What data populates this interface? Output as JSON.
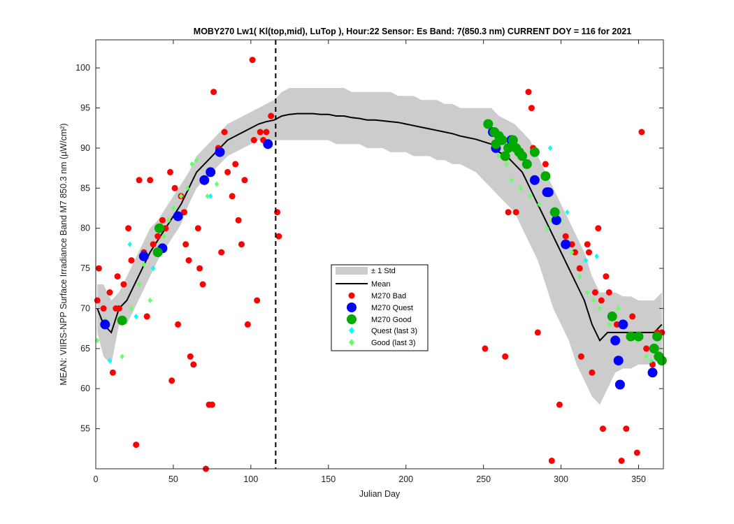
{
  "chart_data": {
    "type": "line",
    "title": "MOBY270   Lw1( Kl(top,mid), LuTop ),   Hour:22 Sensor: Es Band: 7(850.3 nm)   CURRENT DOY = 116 for 2021",
    "xlabel": "Julian Day",
    "ylabel": "MEAN: VIIRS-NPP Surface Irradiance Band M7 850.3 nm (µW/cm²)",
    "xlim": [
      0,
      366
    ],
    "ylim": [
      50,
      103.5
    ],
    "xticks": [
      "0",
      "50",
      "100",
      "150",
      "200",
      "250",
      "300",
      "350"
    ],
    "yticks": [
      "55",
      "60",
      "65",
      "70",
      "75",
      "80",
      "85",
      "90",
      "95",
      "100"
    ],
    "current_doy": 116,
    "legend_position": "center",
    "legend": {
      "std": "± 1 Std",
      "mean": "Mean",
      "bad": "M270 Bad",
      "quest": "M270 Quest",
      "good": "M270 Good",
      "quest_last3": "Quest (last 3)",
      "good_last3": "Good (last 3)"
    },
    "colors": {
      "std_band": "#cccccc",
      "mean": "#000000",
      "bad": "#ff0000",
      "quest": "#0000ff",
      "good": "#00aa00",
      "quest_last3": "#00ffff",
      "good_last3": "#66ff66",
      "current_doy_line": "#000000"
    },
    "mean": {
      "x": [
        1,
        5,
        10,
        15,
        20,
        25,
        30,
        35,
        40,
        45,
        50,
        55,
        60,
        65,
        70,
        75,
        80,
        85,
        90,
        95,
        100,
        105,
        110,
        115,
        120,
        125,
        130,
        135,
        140,
        145,
        150,
        155,
        160,
        165,
        170,
        175,
        180,
        185,
        190,
        195,
        200,
        205,
        210,
        215,
        220,
        225,
        230,
        235,
        240,
        245,
        250,
        255,
        260,
        265,
        270,
        275,
        280,
        285,
        290,
        295,
        300,
        305,
        310,
        315,
        320,
        325,
        330,
        335,
        340,
        345,
        350,
        355,
        360,
        365
      ],
      "y": [
        70,
        68,
        67,
        70,
        71,
        73,
        75,
        77,
        78.5,
        80,
        81.5,
        83,
        85,
        87,
        88,
        89,
        90,
        91,
        91.5,
        92,
        92.5,
        93,
        93.3,
        93.5,
        94,
        94.2,
        94.3,
        94.3,
        94.3,
        94.2,
        94.2,
        94,
        94,
        93.8,
        93.7,
        93.5,
        93.5,
        93.4,
        93.3,
        93.2,
        93,
        92.8,
        92.6,
        92.4,
        92.2,
        92,
        91.8,
        91.5,
        91.3,
        91.1,
        90.8,
        90.5,
        89.5,
        89,
        88,
        87,
        85,
        83,
        81,
        79,
        77,
        75,
        73,
        71,
        68,
        66,
        67,
        67,
        67,
        67,
        67,
        67,
        67,
        68
      ]
    },
    "std_upper": [
      73,
      73,
      71,
      72,
      74,
      76,
      78,
      80,
      81,
      82.5,
      84,
      85.5,
      87,
      89,
      90,
      91,
      92,
      93,
      93.5,
      94,
      94.5,
      95,
      95.5,
      96,
      97,
      97.5,
      97.5,
      97.5,
      97.5,
      97.5,
      97.5,
      97.5,
      97.5,
      97,
      97,
      97,
      97,
      97,
      97,
      96.5,
      96.5,
      96.5,
      96,
      96,
      96,
      95.5,
      95.5,
      95,
      95,
      95,
      95,
      95,
      94,
      93.5,
      93,
      92,
      91,
      89,
      87,
      85,
      83,
      81,
      79,
      77,
      74,
      72,
      72,
      72,
      71.5,
      71.5,
      71,
      71,
      71,
      72
    ],
    "std_lower": [
      67,
      64,
      63,
      68,
      68,
      70,
      72,
      74,
      76,
      77.5,
      79,
      80.5,
      83,
      85,
      86,
      87,
      88,
      89,
      89.5,
      90,
      90.5,
      91,
      91,
      91,
      91,
      91,
      91,
      91,
      91,
      91,
      91,
      90.5,
      90.5,
      90.5,
      90.5,
      90,
      90,
      90,
      89.5,
      89.5,
      89.5,
      89,
      89,
      89,
      88.5,
      88.5,
      88,
      88,
      87.5,
      87,
      86,
      85,
      84,
      83,
      82,
      80,
      78,
      76,
      73,
      70,
      68,
      66,
      63,
      61,
      59,
      58,
      60,
      62,
      62.5,
      62.5,
      63,
      63,
      63,
      64
    ],
    "bad": {
      "x": [
        1,
        2,
        5,
        9,
        11,
        13,
        14,
        15,
        18,
        21,
        23,
        26,
        28,
        31,
        33,
        35,
        37,
        40,
        43,
        45,
        48,
        49,
        51,
        53,
        55,
        57,
        58,
        60,
        61,
        63,
        66,
        67,
        69,
        71,
        73,
        75,
        76,
        79,
        81,
        83,
        85,
        88,
        90,
        92,
        94,
        96,
        98,
        101,
        102,
        104,
        106,
        108,
        110,
        113,
        117,
        118,
        251,
        264,
        266,
        271,
        279,
        281,
        282,
        285,
        290,
        294,
        296,
        299,
        303,
        307,
        309,
        312,
        313,
        317,
        318,
        320,
        322,
        324,
        326,
        327,
        329,
        331,
        336,
        339,
        342,
        346,
        349,
        352,
        355,
        359,
        362,
        365
      ],
      "y": [
        71,
        75,
        70,
        72,
        62,
        70,
        74,
        70,
        73,
        80,
        76,
        53,
        86,
        77,
        69,
        86,
        78,
        79,
        81,
        80,
        87,
        61,
        85,
        68,
        84,
        82,
        78,
        76,
        64,
        63,
        80,
        75,
        73,
        50,
        58,
        58,
        97,
        90,
        77,
        92,
        87,
        84,
        88,
        81,
        78,
        86,
        68,
        101,
        91,
        71,
        92,
        91,
        92,
        94,
        82,
        79,
        65,
        64,
        82,
        82,
        97,
        95,
        90,
        67,
        88,
        51,
        82,
        58,
        79,
        78,
        77,
        75,
        64,
        78,
        77,
        62,
        72,
        80,
        71,
        55,
        74,
        72,
        68,
        51,
        55,
        69,
        52,
        92,
        65,
        63,
        67,
        67
      ]
    },
    "quest": {
      "x": [
        6,
        31,
        43,
        53,
        70,
        74,
        80,
        111,
        256,
        258,
        268,
        283,
        291,
        292,
        297,
        303,
        335,
        337,
        338,
        340,
        359
      ],
      "y": [
        68,
        76.5,
        77.5,
        81.5,
        86,
        87,
        89.5,
        90.5,
        92,
        90,
        91,
        86,
        84.5,
        84.5,
        81,
        78,
        66,
        63.5,
        60.5,
        68,
        62
      ]
    },
    "good": {
      "x": [
        17,
        40,
        41,
        253,
        257,
        258,
        260,
        262,
        264,
        266,
        269,
        271,
        273,
        275,
        278,
        283,
        290,
        296,
        333,
        345,
        350,
        360,
        362,
        363,
        365
      ],
      "y": [
        68.5,
        77,
        80,
        93,
        92,
        90.5,
        91.5,
        91,
        89,
        90,
        91,
        90,
        89.5,
        89,
        88,
        89.5,
        86.5,
        82,
        69,
        66.5,
        66.5,
        65,
        66.5,
        64,
        63.5
      ]
    },
    "quest_last3": {
      "x": [
        9,
        22,
        26,
        37,
        74,
        293,
        304,
        316,
        323
      ],
      "y": [
        63.5,
        78,
        69,
        75,
        84,
        90,
        82,
        76,
        76.5
      ]
    },
    "good_last3": {
      "x": [
        1,
        6,
        17,
        23,
        28,
        31,
        35,
        44,
        47,
        50,
        55,
        59,
        62,
        65,
        72,
        75,
        78,
        255,
        260,
        265,
        268,
        274,
        280,
        286,
        291,
        294,
        296,
        300,
        307,
        312,
        317,
        321,
        325,
        331,
        337,
        341,
        349,
        355,
        358
      ],
      "y": [
        66,
        68.5,
        64,
        70,
        73,
        75.5,
        71,
        79,
        81,
        82.5,
        84,
        85,
        88,
        88.5,
        84,
        87,
        85.5,
        92,
        89,
        88,
        86,
        85,
        84,
        83,
        80,
        81,
        82.5,
        81,
        77,
        74,
        72,
        71,
        70,
        68,
        70,
        68,
        66,
        64,
        63.5
      ]
    }
  }
}
